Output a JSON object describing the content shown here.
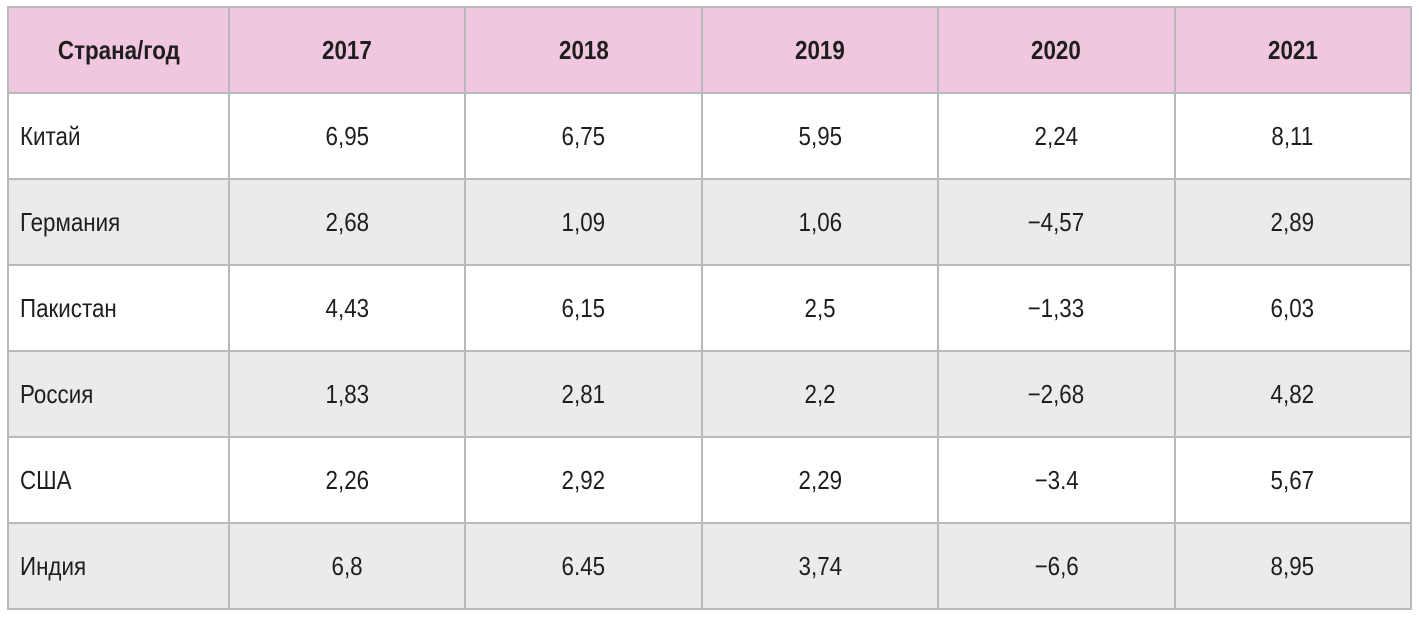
{
  "table": {
    "header": {
      "country_label": "Страна/год",
      "years": [
        "2017",
        "2018",
        "2019",
        "2020",
        "2021"
      ]
    },
    "rows": [
      {
        "country": "Китай",
        "values": [
          "6,95",
          "6,75",
          "5,95",
          "2,24",
          "8,11"
        ]
      },
      {
        "country": "Германия",
        "values": [
          "2,68",
          "1,09",
          "1,06",
          "−4,57",
          "2,89"
        ]
      },
      {
        "country": "Пакистан",
        "values": [
          "4,43",
          "6,15",
          "2,5",
          "−1,33",
          "6,03"
        ]
      },
      {
        "country": "Россия",
        "values": [
          "1,83",
          "2,81",
          "2,2",
          "−2,68",
          "4,82"
        ]
      },
      {
        "country": "США",
        "values": [
          "2,26",
          "2,92",
          "2,29",
          "−3.4",
          "5,67"
        ]
      },
      {
        "country": "Индия",
        "values": [
          "6,8",
          "6.45",
          "3,74",
          "−6,6",
          "8,95"
        ]
      }
    ],
    "colors": {
      "header_bg": "#f1c6df",
      "alt_row_bg": "#ebebeb",
      "border": "#b9b9b9"
    }
  }
}
